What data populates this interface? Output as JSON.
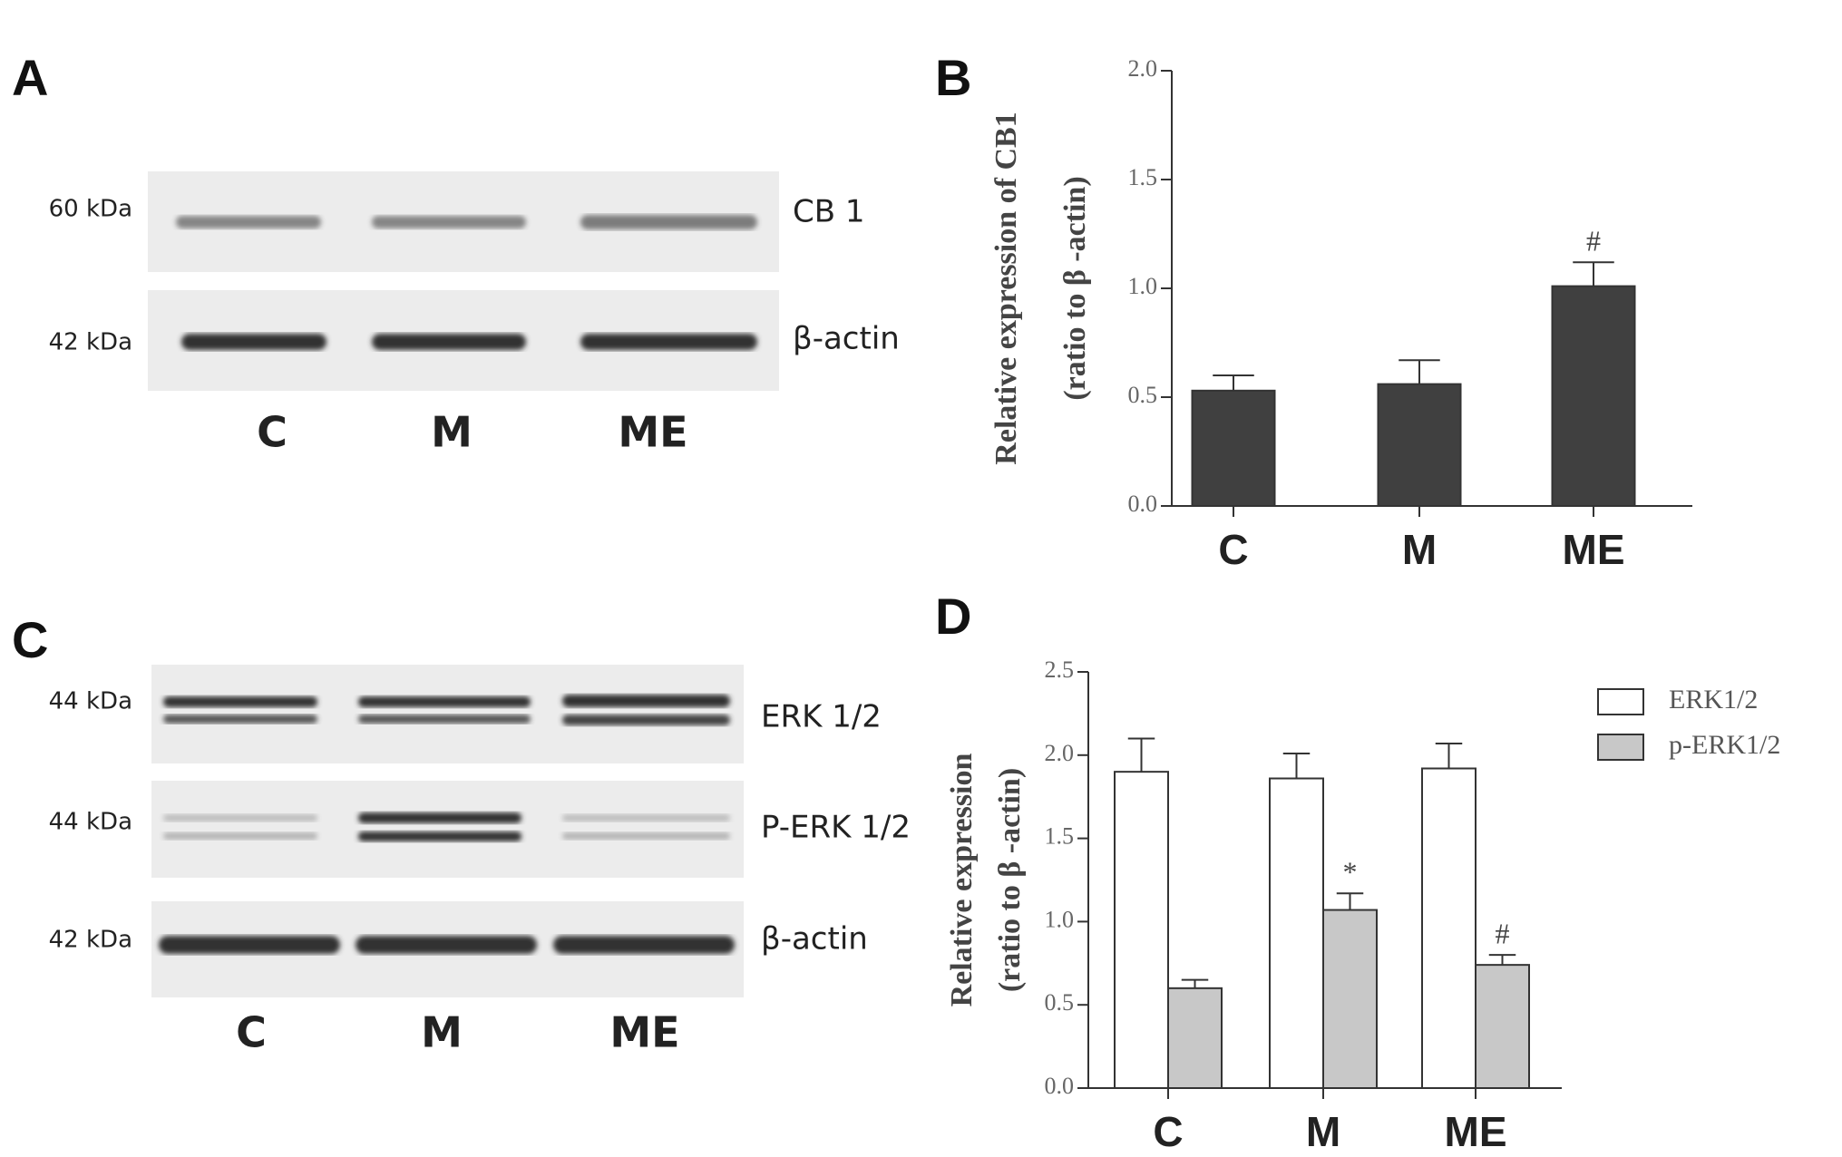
{
  "panel_labels": [
    "A",
    "B",
    "C",
    "D"
  ],
  "blot_a": {
    "markers": [
      "60 kDa",
      "42 kDa"
    ],
    "bands": [
      "CB 1",
      "β-actin"
    ],
    "lanes": [
      "C",
      "M",
      "ME"
    ]
  },
  "blot_c": {
    "markers": [
      "44 kDa",
      "44 kDa",
      "42 kDa"
    ],
    "bands": [
      "ERK 1/2",
      "P-ERK 1/2",
      "β-actin"
    ],
    "lanes": [
      "C",
      "M",
      "ME"
    ]
  },
  "chart_data": [
    {
      "type": "bar",
      "ylabel": [
        "Relative expression of CB1",
        "(ratio to β -actin)"
      ],
      "categories": [
        "C",
        "M",
        "ME"
      ],
      "series": [
        {
          "color": "#404040",
          "values": [
            0.53,
            0.56,
            1.01
          ],
          "errors": [
            0.07,
            0.11,
            0.11
          ],
          "annotations": [
            null,
            null,
            "#"
          ]
        }
      ],
      "ylim": [
        0,
        2
      ],
      "yticks": [
        {
          "value": 0,
          "label": "0.0"
        },
        0.5,
        {
          "value": 1,
          "label": "1.0"
        },
        1.5,
        {
          "value": 2,
          "label": "2.0"
        }
      ]
    },
    {
      "type": "bar",
      "ylabel": [
        "Relative expression",
        "(ratio to β -actin)"
      ],
      "categories": [
        "C",
        "M",
        "ME"
      ],
      "series": [
        {
          "name": "ERK1/2",
          "color": "#ffffff",
          "values": [
            1.9,
            1.86,
            1.92
          ],
          "errors": [
            0.2,
            0.15,
            0.15
          ],
          "annotations": [
            null,
            null,
            null
          ]
        },
        {
          "name": "p-ERK1/2",
          "color": "#c8c8c8",
          "values": [
            0.6,
            1.07,
            0.74
          ],
          "errors": [
            0.05,
            0.1,
            0.06
          ],
          "annotations": [
            null,
            "*",
            "#"
          ]
        }
      ],
      "ylim": [
        0,
        2.5
      ],
      "yticks": [
        {
          "value": 0,
          "label": "0.0"
        },
        0.5,
        {
          "value": 1,
          "label": "1.0"
        },
        1.5,
        {
          "value": 2,
          "label": "2.0"
        },
        2.5
      ]
    }
  ]
}
